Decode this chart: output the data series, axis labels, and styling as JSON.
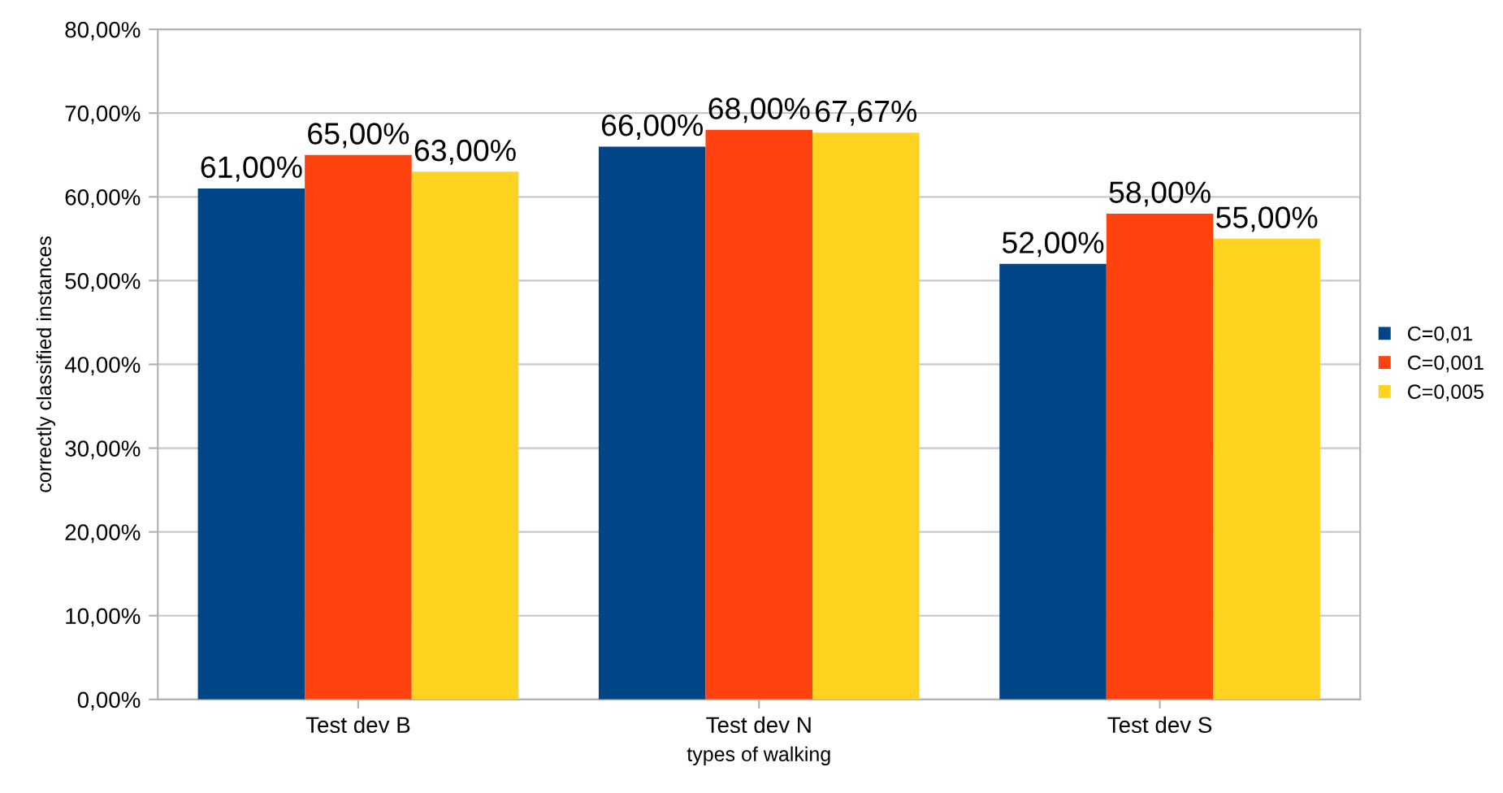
{
  "chart_data": {
    "type": "bar",
    "xlabel": "types of walking",
    "ylabel": "correctly classified instances",
    "categories": [
      "Test dev B",
      "Test dev N",
      "Test dev S"
    ],
    "series": [
      {
        "name": "C=0,01",
        "color": "#004586",
        "values": [
          61,
          66,
          52
        ],
        "value_labels": [
          "61,00%",
          "66,00%",
          "52,00%"
        ]
      },
      {
        "name": "C=0,001",
        "color": "#ff420e",
        "values": [
          65,
          68,
          58
        ],
        "value_labels": [
          "65,00%",
          "68,00%",
          "58,00%"
        ]
      },
      {
        "name": "C=0,005",
        "color": "#ffd320",
        "values": [
          63,
          67.67,
          55
        ],
        "value_labels": [
          "63,00%",
          "67,67%",
          "55,00%"
        ]
      }
    ],
    "ylim": [
      0,
      80
    ],
    "yticks": [
      {
        "value": 0,
        "label": "0,00%"
      },
      {
        "value": 10,
        "label": "10,00%"
      },
      {
        "value": 20,
        "label": "20,00%"
      },
      {
        "value": 30,
        "label": "30,00%"
      },
      {
        "value": 40,
        "label": "40,00%"
      },
      {
        "value": 50,
        "label": "50,00%"
      },
      {
        "value": 60,
        "label": "60,00%"
      },
      {
        "value": 70,
        "label": "70,00%"
      },
      {
        "value": 80,
        "label": "80,00%"
      }
    ],
    "grid": "y",
    "legend": "right"
  }
}
